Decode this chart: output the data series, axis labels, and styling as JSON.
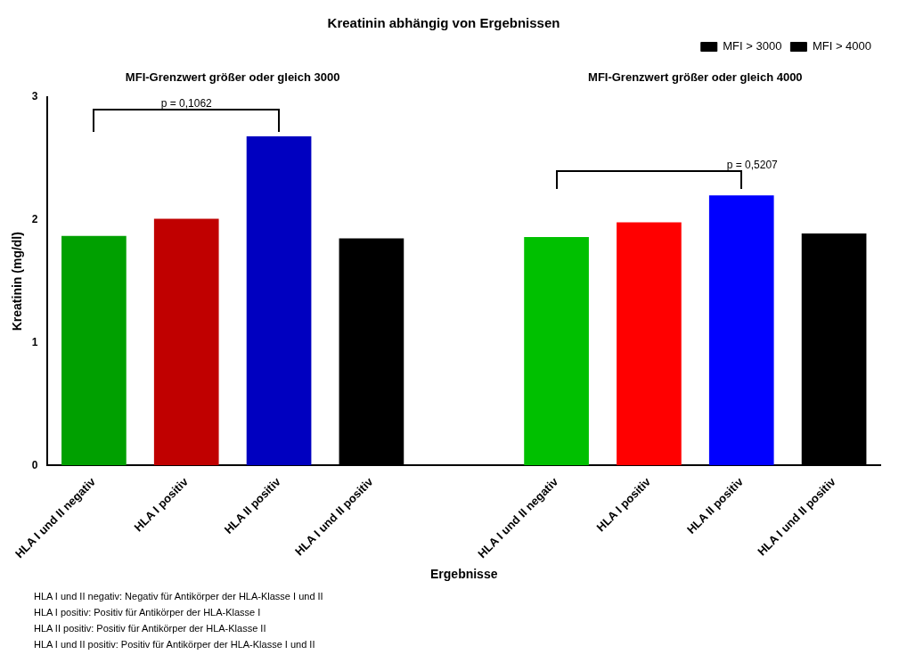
{
  "chart_data": {
    "type": "bar",
    "title": "Kreatinin abhängig von Ergebnissen",
    "xlabel": "Ergebnisse",
    "ylabel": "Kreatinin (mg/dl)",
    "categories": [
      "HLA I und II negativ",
      "HLA I positiv",
      "HLA II positiv",
      "HLA I und II positiv",
      null,
      "HLA I und II negativ",
      "HLA I positiv",
      "HLA II positiv",
      "HLA I und II positiv"
    ],
    "series": [
      {
        "name": "MFI > 3000",
        "color": "#000000",
        "colors": [
          "#00a000",
          "#c00000",
          "#0000c0",
          "#000000",
          null,
          null,
          null,
          null,
          null
        ],
        "values": [
          1.87,
          2.01,
          2.68,
          1.85,
          null,
          null,
          null,
          null,
          null
        ]
      },
      {
        "name": "MFI > 4000",
        "color": "#000000",
        "colors": [
          null,
          null,
          null,
          null,
          null,
          "#00c000",
          "#ff0000",
          "#0000ff",
          "#000000"
        ],
        "values": [
          null,
          null,
          null,
          null,
          null,
          1.86,
          1.98,
          2.2,
          1.89
        ]
      }
    ],
    "ylim": [
      0,
      3
    ],
    "yticks": [
      0,
      1,
      2,
      3
    ],
    "grid": false,
    "legend": "top right",
    "annotations": [
      "MFI-Grenzwert größer oder gleich 3000",
      "MFI-Grenzwert größer oder gleich 4000",
      "p = 0,1062",
      "p = 0,5207",
      "HLA I und II negativ: Negativ für Antikörper der HLA-Klasse I und II",
      "HLA I positiv: Positiv für Antikörper der HLA-Klasse I",
      "HLA II positiv: Positiv für Antikörper der HLA-Klasse II",
      "HLA I und II positiv: Positiv für Antikörper der HLA-Klasse I und II"
    ]
  }
}
